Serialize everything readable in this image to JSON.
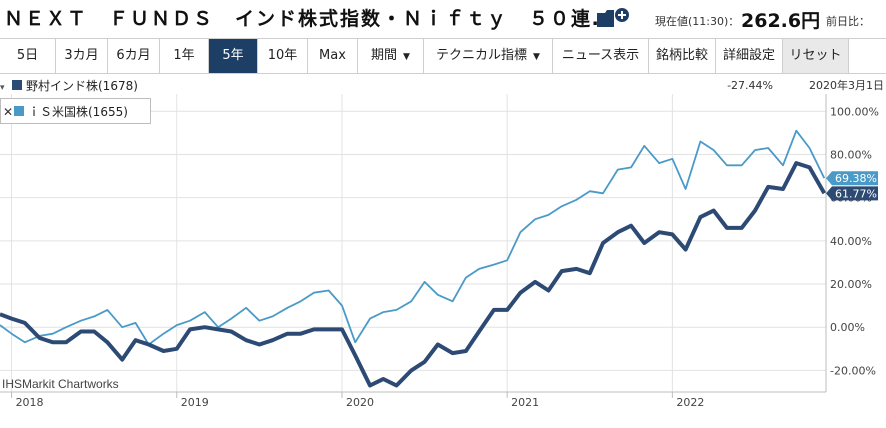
{
  "header": {
    "title": "ＮＥＸＴ　ＦＵＮＤＳ　インド株式指数・Ｎｉｆｔｙ　５０連…",
    "price_label": "現在値(11:30)：",
    "price_value": "262.6円",
    "change_label": "前日比："
  },
  "toolbar": {
    "buttons": [
      {
        "label": "5日"
      },
      {
        "label": "3カ月"
      },
      {
        "label": "6カ月"
      },
      {
        "label": "1年"
      },
      {
        "label": "5年"
      },
      {
        "label": "10年"
      },
      {
        "label": "Max"
      },
      {
        "label": "期間"
      },
      {
        "label": "テクニカル指標"
      },
      {
        "label": "ニュース表示"
      },
      {
        "label": "銘柄比較"
      },
      {
        "label": "詳細設定"
      },
      {
        "label": "リセット"
      }
    ],
    "active": "5年"
  },
  "legend": {
    "series1_label": "野村インド株(1678)",
    "series1_value": "-27.44%",
    "date": "2020年3月1日",
    "series2_label": "ｉＳ米国株(1655)",
    "close_glyph": "✕",
    "collapse_glyph": "▾"
  },
  "watermark": "IHSMarkit Chartworks",
  "colors": {
    "nomura": "#2c4a73",
    "ishares": "#4a9ac8",
    "grid": "#e2e2e2",
    "axis": "#bdbdbd",
    "active_button": "#1d3f66"
  },
  "icons": {
    "folder": "folder-plus-icon",
    "close": "close-icon",
    "chevron": "chevron-down-icon"
  },
  "chart_data": {
    "type": "line",
    "xlim": [
      2017.93,
      2022.93
    ],
    "ylim": [
      -30,
      108
    ],
    "y_ticks": [
      -20,
      0,
      20,
      40,
      60,
      80,
      100
    ],
    "y_tick_labels": [
      "-20.00%",
      "0.00%",
      "20.00%",
      "40.00%",
      "60.00%",
      "80.00%",
      "100.00%"
    ],
    "x_ticks": [
      2018,
      2019,
      2020,
      2021,
      2022
    ],
    "x_tick_labels": [
      "2018",
      "2019",
      "2020",
      "2021",
      "2022"
    ],
    "grid": true,
    "series": [
      {
        "name": "野村インド株(1678)",
        "color": "#2c4a73",
        "end_label": "61.77%",
        "points": [
          [
            2017.93,
            6
          ],
          [
            2018.0,
            4
          ],
          [
            2018.08,
            2
          ],
          [
            2018.17,
            -5
          ],
          [
            2018.25,
            -7
          ],
          [
            2018.33,
            -7
          ],
          [
            2018.42,
            -2
          ],
          [
            2018.5,
            -2
          ],
          [
            2018.58,
            -7
          ],
          [
            2018.67,
            -15
          ],
          [
            2018.75,
            -6
          ],
          [
            2018.83,
            -8
          ],
          [
            2018.92,
            -11
          ],
          [
            2019.0,
            -10
          ],
          [
            2019.08,
            -1
          ],
          [
            2019.17,
            0
          ],
          [
            2019.25,
            -1
          ],
          [
            2019.33,
            -2
          ],
          [
            2019.42,
            -6
          ],
          [
            2019.5,
            -8
          ],
          [
            2019.58,
            -6
          ],
          [
            2019.67,
            -3
          ],
          [
            2019.75,
            -3
          ],
          [
            2019.83,
            -1
          ],
          [
            2019.92,
            -1
          ],
          [
            2020.0,
            -1
          ],
          [
            2020.08,
            -13
          ],
          [
            2020.17,
            -27
          ],
          [
            2020.25,
            -24
          ],
          [
            2020.33,
            -27
          ],
          [
            2020.42,
            -20
          ],
          [
            2020.5,
            -16
          ],
          [
            2020.58,
            -8
          ],
          [
            2020.67,
            -12
          ],
          [
            2020.75,
            -11
          ],
          [
            2020.83,
            -2
          ],
          [
            2020.92,
            8
          ],
          [
            2021.0,
            8
          ],
          [
            2021.08,
            16
          ],
          [
            2021.17,
            21
          ],
          [
            2021.25,
            17
          ],
          [
            2021.33,
            26
          ],
          [
            2021.42,
            27
          ],
          [
            2021.5,
            25
          ],
          [
            2021.58,
            39
          ],
          [
            2021.67,
            44
          ],
          [
            2021.75,
            47
          ],
          [
            2021.83,
            39
          ],
          [
            2021.92,
            44
          ],
          [
            2022.0,
            43
          ],
          [
            2022.08,
            36
          ],
          [
            2022.17,
            51
          ],
          [
            2022.25,
            54
          ],
          [
            2022.33,
            46
          ],
          [
            2022.42,
            46
          ],
          [
            2022.5,
            54
          ],
          [
            2022.58,
            65
          ],
          [
            2022.67,
            64
          ],
          [
            2022.75,
            76
          ],
          [
            2022.83,
            74
          ],
          [
            2022.92,
            62
          ]
        ]
      },
      {
        "name": "ｉＳ米国株(1655)",
        "color": "#4a9ac8",
        "end_label": "69.38%",
        "points": [
          [
            2017.93,
            1
          ],
          [
            2018.0,
            -3
          ],
          [
            2018.08,
            -7
          ],
          [
            2018.17,
            -4
          ],
          [
            2018.25,
            -3
          ],
          [
            2018.33,
            0
          ],
          [
            2018.42,
            3
          ],
          [
            2018.5,
            5
          ],
          [
            2018.58,
            8
          ],
          [
            2018.67,
            0
          ],
          [
            2018.75,
            2
          ],
          [
            2018.83,
            -8
          ],
          [
            2018.92,
            -3
          ],
          [
            2019.0,
            1
          ],
          [
            2019.08,
            3
          ],
          [
            2019.17,
            7
          ],
          [
            2019.25,
            0
          ],
          [
            2019.33,
            4
          ],
          [
            2019.42,
            9
          ],
          [
            2019.5,
            3
          ],
          [
            2019.58,
            5
          ],
          [
            2019.67,
            9
          ],
          [
            2019.75,
            12
          ],
          [
            2019.83,
            16
          ],
          [
            2019.92,
            17
          ],
          [
            2020.0,
            10
          ],
          [
            2020.08,
            -7
          ],
          [
            2020.17,
            4
          ],
          [
            2020.25,
            7
          ],
          [
            2020.33,
            8
          ],
          [
            2020.42,
            12
          ],
          [
            2020.5,
            21
          ],
          [
            2020.58,
            15
          ],
          [
            2020.67,
            12
          ],
          [
            2020.75,
            23
          ],
          [
            2020.83,
            27
          ],
          [
            2020.92,
            29
          ],
          [
            2021.0,
            31
          ],
          [
            2021.08,
            44
          ],
          [
            2021.17,
            50
          ],
          [
            2021.25,
            52
          ],
          [
            2021.33,
            56
          ],
          [
            2021.42,
            59
          ],
          [
            2021.5,
            63
          ],
          [
            2021.58,
            62
          ],
          [
            2021.67,
            73
          ],
          [
            2021.75,
            74
          ],
          [
            2021.83,
            84
          ],
          [
            2021.92,
            76
          ],
          [
            2022.0,
            78
          ],
          [
            2022.08,
            64
          ],
          [
            2022.17,
            86
          ],
          [
            2022.25,
            82
          ],
          [
            2022.33,
            75
          ],
          [
            2022.42,
            75
          ],
          [
            2022.5,
            82
          ],
          [
            2022.58,
            83
          ],
          [
            2022.67,
            75
          ],
          [
            2022.75,
            91
          ],
          [
            2022.83,
            83
          ],
          [
            2022.92,
            69
          ]
        ]
      }
    ]
  }
}
